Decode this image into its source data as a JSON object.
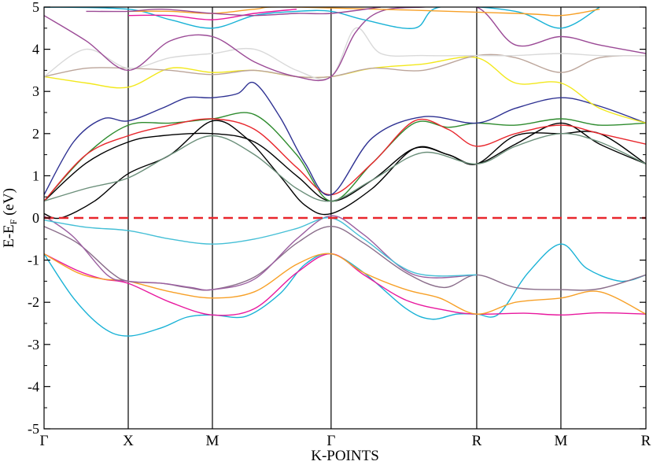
{
  "chart_data": {
    "type": "line",
    "title": "",
    "xlabel": "K-POINTS",
    "ylabel": {
      "base": "E-E",
      "sub": "F",
      "unit": " (eV)"
    },
    "ylim": [
      -5,
      5
    ],
    "yticks": [
      "-5",
      "-4",
      "-3",
      "-2",
      "-1",
      "0",
      "1",
      "2",
      "3",
      "4",
      "5"
    ],
    "xlim": [
      0,
      7.15
    ],
    "high_symmetry_points": [
      {
        "label": "Γ",
        "x": 0
      },
      {
        "label": "X",
        "x": 1
      },
      {
        "label": "M",
        "x": 2
      },
      {
        "label": "Γ",
        "x": 3.41
      },
      {
        "label": "R",
        "x": 5.14
      },
      {
        "label": "M",
        "x": 6.14
      },
      {
        "label": "R",
        "x": 7.15
      }
    ],
    "fermi_level": {
      "y": 0,
      "color": "#e8262c",
      "style": "dashed"
    },
    "series": [
      {
        "color": "#19b2d6",
        "points": [
          [
            0,
            -0.85
          ],
          [
            0.35,
            -1.9
          ],
          [
            0.7,
            -2.6
          ],
          [
            1,
            -2.8
          ],
          [
            1.4,
            -2.6
          ],
          [
            1.7,
            -2.35
          ],
          [
            2,
            -2.3
          ],
          [
            2.4,
            -2.33
          ],
          [
            2.8,
            -1.8
          ],
          [
            3.1,
            -1.1
          ],
          [
            3.41,
            -0.85
          ],
          [
            3.8,
            -1.3
          ],
          [
            4.3,
            -2.15
          ],
          [
            4.6,
            -2.4
          ],
          [
            4.9,
            -2.28
          ],
          [
            5.14,
            -2.28
          ],
          [
            5.4,
            -2.28
          ],
          [
            5.75,
            -1.3
          ],
          [
            6.14,
            -0.62
          ],
          [
            6.45,
            -1.2
          ],
          [
            6.85,
            -1.5
          ],
          [
            7.15,
            -1.35
          ]
        ]
      },
      {
        "color": "#e8189e",
        "points": [
          [
            0,
            -0.85
          ],
          [
            0.4,
            -1.25
          ],
          [
            0.7,
            -1.45
          ],
          [
            1,
            -1.55
          ],
          [
            1.5,
            -2.0
          ],
          [
            2,
            -2.3
          ],
          [
            2.5,
            -2.15
          ],
          [
            3.0,
            -1.3
          ],
          [
            3.41,
            -0.85
          ],
          [
            3.8,
            -1.35
          ],
          [
            4.3,
            -1.95
          ],
          [
            4.8,
            -2.2
          ],
          [
            5.14,
            -2.28
          ],
          [
            5.7,
            -2.26
          ],
          [
            6.14,
            -2.3
          ],
          [
            6.6,
            -2.25
          ],
          [
            7.15,
            -2.28
          ]
        ]
      },
      {
        "color": "#f7a027",
        "points": [
          [
            0,
            -0.85
          ],
          [
            0.4,
            -1.3
          ],
          [
            0.7,
            -1.45
          ],
          [
            1,
            -1.5
          ],
          [
            1.5,
            -1.75
          ],
          [
            2,
            -1.9
          ],
          [
            2.5,
            -1.75
          ],
          [
            3.0,
            -1.1
          ],
          [
            3.41,
            -0.85
          ],
          [
            3.8,
            -1.3
          ],
          [
            4.3,
            -1.7
          ],
          [
            4.7,
            -1.9
          ],
          [
            5.14,
            -2.28
          ],
          [
            5.6,
            -2.0
          ],
          [
            6.14,
            -1.9
          ],
          [
            6.6,
            -1.75
          ],
          [
            7.15,
            -2.28
          ]
        ]
      },
      {
        "color": "#8a6d8a",
        "points": [
          [
            0,
            -0.2
          ],
          [
            0.4,
            -0.6
          ],
          [
            0.8,
            -1.3
          ],
          [
            1,
            -1.5
          ],
          [
            1.4,
            -1.55
          ],
          [
            1.7,
            -1.65
          ],
          [
            2,
            -1.7
          ],
          [
            2.5,
            -1.4
          ],
          [
            3.0,
            -0.6
          ],
          [
            3.41,
            -0.2
          ],
          [
            3.8,
            -0.6
          ],
          [
            4.3,
            -1.3
          ],
          [
            4.75,
            -1.65
          ],
          [
            5.14,
            -1.35
          ],
          [
            5.6,
            -1.65
          ],
          [
            6.14,
            -1.7
          ],
          [
            6.6,
            -1.68
          ],
          [
            7.15,
            -1.35
          ]
        ]
      },
      {
        "color": "#9b5fa0",
        "points": [
          [
            0,
            0.05
          ],
          [
            0.35,
            -0.45
          ],
          [
            0.75,
            -1.35
          ],
          [
            1,
            -1.5
          ],
          [
            1.4,
            -1.55
          ],
          [
            1.75,
            -1.65
          ],
          [
            2,
            -1.7
          ],
          [
            2.5,
            -1.45
          ],
          [
            3.0,
            -0.5
          ],
          [
            3.41,
            0.05
          ],
          [
            3.8,
            -0.4
          ],
          [
            4.4,
            -1.35
          ],
          [
            5.14,
            -1.35
          ]
        ]
      },
      {
        "color": "#45bfd6",
        "points": [
          [
            0,
            -0.05
          ],
          [
            0.5,
            -0.22
          ],
          [
            1,
            -0.3
          ],
          [
            1.5,
            -0.5
          ],
          [
            2,
            -0.62
          ],
          [
            2.5,
            -0.5
          ],
          [
            3.0,
            -0.25
          ],
          [
            3.41,
            0
          ],
          [
            3.8,
            -0.5
          ],
          [
            4.4,
            -1.3
          ],
          [
            5.14,
            -1.35
          ]
        ]
      },
      {
        "color": "#000000",
        "points": [
          [
            0,
            0.1
          ],
          [
            0.2,
            0.0
          ],
          [
            0.6,
            0.4
          ],
          [
            1,
            1.05
          ],
          [
            1.5,
            1.5
          ],
          [
            2,
            2.3
          ],
          [
            2.4,
            1.9
          ],
          [
            2.8,
            1.0
          ],
          [
            3.1,
            0.3
          ],
          [
            3.41,
            0.1
          ],
          [
            3.9,
            0.7
          ],
          [
            4.4,
            1.65
          ],
          [
            4.8,
            1.5
          ],
          [
            5.14,
            1.28
          ],
          [
            5.6,
            1.75
          ],
          [
            6.14,
            2.25
          ],
          [
            6.6,
            1.75
          ],
          [
            7.15,
            1.28
          ]
        ]
      },
      {
        "color": "#000000",
        "points": [
          [
            0,
            0.4
          ],
          [
            0.5,
            1.3
          ],
          [
            1,
            1.8
          ],
          [
            1.4,
            1.95
          ],
          [
            2,
            2.0
          ],
          [
            2.5,
            1.8
          ],
          [
            3.0,
            1.0
          ],
          [
            3.41,
            0.4
          ],
          [
            3.9,
            0.9
          ],
          [
            4.4,
            1.65
          ],
          [
            4.8,
            1.5
          ],
          [
            5.14,
            1.28
          ],
          [
            5.6,
            1.95
          ],
          [
            6.14,
            2.0
          ],
          [
            6.6,
            2.0
          ],
          [
            7.15,
            1.28
          ]
        ]
      },
      {
        "color": "#2e8b2e",
        "points": [
          [
            0,
            0.4
          ],
          [
            0.5,
            1.5
          ],
          [
            1,
            2.2
          ],
          [
            1.5,
            2.25
          ],
          [
            2,
            2.35
          ],
          [
            2.5,
            2.45
          ],
          [
            3.0,
            1.5
          ],
          [
            3.41,
            0.4
          ],
          [
            3.9,
            1.3
          ],
          [
            4.4,
            2.25
          ],
          [
            4.8,
            2.15
          ],
          [
            5.14,
            2.25
          ],
          [
            5.6,
            2.2
          ],
          [
            6.14,
            2.35
          ],
          [
            6.6,
            2.2
          ],
          [
            7.15,
            2.25
          ]
        ]
      },
      {
        "color": "#e8262c",
        "points": [
          [
            0,
            0.4
          ],
          [
            0.5,
            1.5
          ],
          [
            1,
            1.95
          ],
          [
            1.5,
            2.2
          ],
          [
            2,
            2.35
          ],
          [
            2.5,
            2.1
          ],
          [
            3.0,
            1.2
          ],
          [
            3.41,
            0.55
          ],
          [
            3.9,
            1.3
          ],
          [
            4.4,
            2.3
          ],
          [
            4.8,
            2.1
          ],
          [
            5.14,
            1.7
          ],
          [
            5.6,
            2.0
          ],
          [
            6.14,
            2.2
          ],
          [
            6.6,
            2.0
          ],
          [
            7.15,
            1.75
          ]
        ]
      },
      {
        "color": "#6b8f7a",
        "points": [
          [
            0,
            0.4
          ],
          [
            0.5,
            0.7
          ],
          [
            1,
            0.95
          ],
          [
            1.5,
            1.5
          ],
          [
            2,
            1.95
          ],
          [
            2.5,
            1.5
          ],
          [
            3.0,
            0.7
          ],
          [
            3.41,
            0.4
          ],
          [
            3.9,
            0.9
          ],
          [
            4.5,
            1.55
          ],
          [
            5.14,
            1.28
          ],
          [
            5.6,
            1.7
          ],
          [
            6.14,
            2.0
          ],
          [
            6.6,
            1.8
          ],
          [
            7.15,
            1.28
          ]
        ]
      },
      {
        "color": "#2e3192",
        "points": [
          [
            0,
            0.55
          ],
          [
            0.35,
            1.8
          ],
          [
            0.7,
            2.35
          ],
          [
            1,
            2.3
          ],
          [
            1.4,
            2.6
          ],
          [
            1.7,
            2.85
          ],
          [
            2,
            2.85
          ],
          [
            2.3,
            2.95
          ],
          [
            2.5,
            3.2
          ],
          [
            2.8,
            2.4
          ],
          [
            3.1,
            1.3
          ],
          [
            3.41,
            0.55
          ],
          [
            3.9,
            1.9
          ],
          [
            4.5,
            2.4
          ],
          [
            5.14,
            2.25
          ],
          [
            5.6,
            2.6
          ],
          [
            6.14,
            2.85
          ],
          [
            6.6,
            2.65
          ],
          [
            7.15,
            2.25
          ]
        ]
      },
      {
        "color": "#f2e81c",
        "points": [
          [
            0,
            3.35
          ],
          [
            0.5,
            3.2
          ],
          [
            1,
            3.1
          ],
          [
            1.5,
            3.55
          ],
          [
            2,
            3.45
          ],
          [
            2.5,
            3.5
          ],
          [
            3.0,
            3.35
          ],
          [
            3.41,
            3.35
          ],
          [
            3.9,
            3.55
          ],
          [
            4.5,
            3.65
          ],
          [
            5.14,
            3.8
          ],
          [
            5.6,
            3.2
          ],
          [
            6.14,
            3.2
          ],
          [
            6.6,
            2.6
          ],
          [
            7.15,
            2.25
          ]
        ]
      },
      {
        "color": "#bca59a",
        "points": [
          [
            0,
            3.35
          ],
          [
            0.5,
            3.55
          ],
          [
            1,
            3.55
          ],
          [
            1.5,
            3.5
          ],
          [
            2,
            3.4
          ],
          [
            2.5,
            3.5
          ],
          [
            3.0,
            3.35
          ],
          [
            3.41,
            3.35
          ],
          [
            3.9,
            3.55
          ],
          [
            4.5,
            3.5
          ],
          [
            5.14,
            3.85
          ],
          [
            5.6,
            3.8
          ],
          [
            6.14,
            3.45
          ],
          [
            6.6,
            3.8
          ],
          [
            7.15,
            3.85
          ]
        ]
      },
      {
        "color": "#d9d9d9",
        "points": [
          [
            0,
            3.35
          ],
          [
            0.5,
            4.0
          ],
          [
            1,
            3.55
          ],
          [
            1.5,
            3.8
          ],
          [
            2,
            3.9
          ],
          [
            2.5,
            4.0
          ],
          [
            3.0,
            3.5
          ],
          [
            3.41,
            3.35
          ],
          [
            3.7,
            4.5
          ],
          [
            4.0,
            3.9
          ],
          [
            4.5,
            3.85
          ],
          [
            5.14,
            3.85
          ],
          [
            5.6,
            3.85
          ],
          [
            6.14,
            3.9
          ],
          [
            6.6,
            3.85
          ],
          [
            7.15,
            3.85
          ]
        ]
      },
      {
        "color": "#9b4a96",
        "points": [
          [
            0,
            4.8
          ],
          [
            0.5,
            4.2
          ],
          [
            1,
            3.5
          ],
          [
            1.5,
            4.2
          ],
          [
            2,
            4.3
          ],
          [
            2.5,
            3.7
          ],
          [
            3.0,
            3.35
          ],
          [
            3.41,
            3.35
          ],
          [
            3.7,
            4.4
          ],
          [
            4.0,
            4.9
          ],
          [
            4.5,
            5.0
          ],
          [
            5.14,
            5.0
          ],
          [
            5.6,
            4.1
          ],
          [
            6.14,
            4.3
          ],
          [
            6.6,
            4.1
          ],
          [
            7.15,
            3.9
          ]
        ]
      },
      {
        "color": "#19b2d6",
        "points": [
          [
            0,
            5.0
          ],
          [
            1,
            4.95
          ],
          [
            1.5,
            4.7
          ],
          [
            2,
            4.5
          ],
          [
            2.5,
            4.8
          ],
          [
            3.0,
            4.9
          ],
          [
            3.41,
            4.9
          ],
          [
            3.8,
            4.7
          ],
          [
            4.4,
            4.5
          ],
          [
            4.7,
            5.0
          ],
          [
            5.6,
            4.9
          ],
          [
            6.14,
            4.5
          ],
          [
            6.6,
            5.0
          ]
        ]
      },
      {
        "color": "#f7a027",
        "points": [
          [
            1,
            4.9
          ],
          [
            1.5,
            4.9
          ],
          [
            2,
            4.85
          ],
          [
            2.5,
            4.95
          ],
          [
            3.0,
            5.0
          ],
          [
            5.6,
            4.85
          ],
          [
            6.14,
            4.8
          ],
          [
            6.6,
            4.95
          ]
        ]
      },
      {
        "color": "#e8189e",
        "points": [
          [
            1,
            4.8
          ],
          [
            1.5,
            4.8
          ],
          [
            2,
            4.7
          ],
          [
            2.5,
            4.85
          ],
          [
            3.0,
            4.95
          ]
        ]
      },
      {
        "color": "#9b4a96",
        "points": [
          [
            0.5,
            4.9
          ],
          [
            1,
            4.9
          ],
          [
            1.4,
            4.95
          ],
          [
            2,
            4.85
          ],
          [
            2.5,
            4.8
          ],
          [
            3.0,
            4.85
          ],
          [
            3.41,
            4.85
          ],
          [
            4.0,
            5.0
          ]
        ]
      }
    ]
  }
}
